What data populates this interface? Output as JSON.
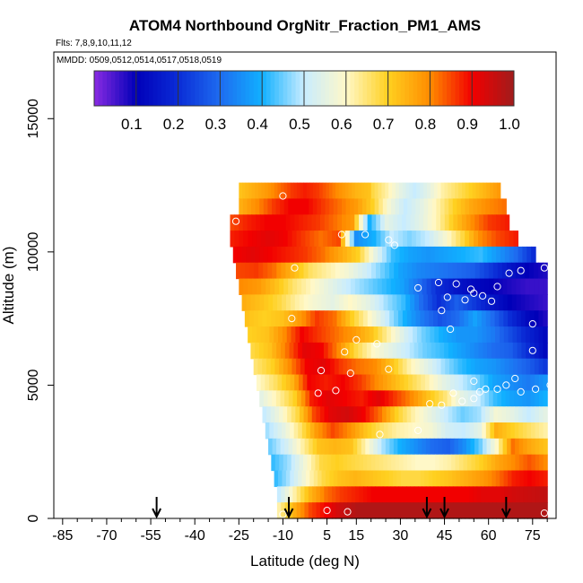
{
  "chart_data": {
    "type": "heatmap",
    "title": "ATOM4 Northbound OrgNitr_Fraction_PM1_AMS",
    "flights_text": "Flts: 7,8,9,10,11,12",
    "mmdd_text": "MMDD: 0509,0512,0514,0517,0518,0519",
    "xlabel": "Latitude (deg N)",
    "ylabel": "Altitude (m)",
    "xlim": [
      -88,
      83
    ],
    "ylim": [
      0,
      17500
    ],
    "x_ticks": [
      -85,
      -70,
      -55,
      -40,
      -25,
      -10,
      5,
      15,
      30,
      45,
      60,
      75
    ],
    "x_tick_labels": [
      "-85",
      "-70",
      "-55",
      "-40",
      "-25",
      "-10",
      "5",
      "15",
      "30",
      "45",
      "60",
      "75"
    ],
    "y_ticks": [
      0,
      5000,
      10000,
      15000
    ],
    "y_tick_labels": [
      "0",
      "5000",
      "10000",
      "15000"
    ],
    "colorbar": {
      "ticks": [
        0.1,
        0.2,
        0.3,
        0.4,
        0.5,
        0.6,
        0.7,
        0.8,
        0.9,
        1.0
      ],
      "tick_labels": [
        "0.1",
        "0.2",
        "0.3",
        "0.4",
        "0.5",
        "0.6",
        "0.7",
        "0.8",
        "0.9",
        "1.0"
      ],
      "range": [
        0.0,
        1.0
      ],
      "colors": [
        "#8a2be2",
        "#0000b8",
        "#0a2cd6",
        "#1e6cf0",
        "#11b0ff",
        "#c8ecff",
        "#fff8c8",
        "#ffd020",
        "#ff8c00",
        "#f20000",
        "#a01c1c"
      ]
    },
    "grid_rows": [
      {
        "alt": 12300,
        "lat_start": -25,
        "lat_end": 20,
        "values": [
          0.72,
          0.75,
          0.78,
          0.82,
          0.86,
          0.88,
          0.86,
          0.82,
          0.78,
          0.74,
          0.72
        ]
      },
      {
        "alt": 12300,
        "lat_start": 20,
        "lat_end": 64,
        "values": [
          0.68,
          0.62,
          0.55,
          0.5,
          0.55,
          0.62,
          0.66,
          0.7,
          0.74,
          0.78
        ]
      },
      {
        "alt": 11700,
        "lat_start": -25,
        "lat_end": 66,
        "values": [
          0.75,
          0.8,
          0.86,
          0.9,
          0.9,
          0.86,
          0.82,
          0.78,
          0.7,
          0.58,
          0.5,
          0.55,
          0.62,
          0.7,
          0.76,
          0.8,
          0.82
        ]
      },
      {
        "alt": 11100,
        "lat_start": -28,
        "lat_end": 67,
        "values": [
          0.85,
          0.88,
          0.9,
          0.9,
          0.88,
          0.86,
          0.82,
          0.78,
          0.4,
          0.55,
          0.5,
          0.55,
          0.62,
          0.72,
          0.8,
          0.86,
          0.88
        ]
      },
      {
        "alt": 10500,
        "lat_start": -28,
        "lat_end": 70,
        "values": [
          0.88,
          0.9,
          0.92,
          0.9,
          0.86,
          0.82,
          0.85,
          0.35,
          0.4,
          0.5,
          0.46,
          0.5,
          0.58,
          0.68,
          0.8,
          0.85,
          0.88
        ]
      },
      {
        "alt": 9900,
        "lat_start": -27,
        "lat_end": 76,
        "values": [
          0.9,
          0.92,
          0.9,
          0.88,
          0.86,
          0.82,
          0.76,
          0.7,
          0.55,
          0.42,
          0.38,
          0.36,
          0.38,
          0.4,
          0.42,
          0.36,
          0.3,
          0.2
        ]
      },
      {
        "alt": 9300,
        "lat_start": -26,
        "lat_end": 80,
        "values": [
          0.85,
          0.86,
          0.82,
          0.74,
          0.66,
          0.62,
          0.58,
          0.52,
          0.45,
          0.38,
          0.34,
          0.32,
          0.3,
          0.28,
          0.22,
          0.15,
          0.1,
          0.08
        ]
      },
      {
        "alt": 8700,
        "lat_start": -25,
        "lat_end": 80,
        "values": [
          0.8,
          0.78,
          0.72,
          0.65,
          0.6,
          0.55,
          0.5,
          0.46,
          0.42,
          0.38,
          0.3,
          0.2,
          0.15,
          0.12,
          0.1,
          0.08,
          0.06,
          0.06
        ]
      },
      {
        "alt": 8100,
        "lat_start": -24,
        "lat_end": 80,
        "values": [
          0.75,
          0.72,
          0.68,
          0.62,
          0.58,
          0.55,
          0.6,
          0.55,
          0.48,
          0.42,
          0.3,
          0.2,
          0.28,
          0.22,
          0.15,
          0.1,
          0.08,
          0.06
        ]
      },
      {
        "alt": 7500,
        "lat_start": -23,
        "lat_end": 80,
        "values": [
          0.72,
          0.7,
          0.72,
          0.78,
          0.86,
          0.82,
          0.7,
          0.6,
          0.5,
          0.4,
          0.32,
          0.26,
          0.3,
          0.38,
          0.3,
          0.2,
          0.12,
          0.08
        ]
      },
      {
        "alt": 6900,
        "lat_start": -22,
        "lat_end": 80,
        "values": [
          0.7,
          0.72,
          0.8,
          0.9,
          0.86,
          0.82,
          0.78,
          0.72,
          0.62,
          0.52,
          0.45,
          0.4,
          0.36,
          0.36,
          0.32,
          0.25,
          0.18,
          0.12
        ]
      },
      {
        "alt": 6300,
        "lat_start": -21,
        "lat_end": 80,
        "values": [
          0.68,
          0.72,
          0.82,
          0.92,
          0.9,
          0.8,
          0.68,
          0.6,
          0.55,
          0.5,
          0.45,
          0.42,
          0.38,
          0.34,
          0.3,
          0.28,
          0.2,
          0.12
        ]
      },
      {
        "alt": 5700,
        "lat_start": -20,
        "lat_end": 80,
        "values": [
          0.65,
          0.7,
          0.8,
          0.9,
          0.92,
          0.86,
          0.82,
          0.8,
          0.72,
          0.62,
          0.55,
          0.48,
          0.42,
          0.38,
          0.36,
          0.32,
          0.28,
          0.22
        ]
      },
      {
        "alt": 5100,
        "lat_start": -19,
        "lat_end": 80,
        "values": [
          0.6,
          0.66,
          0.74,
          0.9,
          0.88,
          0.9,
          0.86,
          0.8,
          0.74,
          0.68,
          0.62,
          0.55,
          0.5,
          0.45,
          0.38,
          0.35,
          0.32,
          0.36
        ]
      },
      {
        "alt": 4500,
        "lat_start": -18,
        "lat_end": 80,
        "values": [
          0.55,
          0.62,
          0.7,
          0.88,
          0.92,
          0.9,
          0.88,
          0.92,
          0.86,
          0.8,
          0.72,
          0.65,
          0.55,
          0.5,
          0.42,
          0.38,
          0.36,
          0.4
        ]
      },
      {
        "alt": 3900,
        "lat_start": -17,
        "lat_end": 80,
        "values": [
          0.5,
          0.58,
          0.68,
          0.85,
          0.92,
          0.94,
          0.9,
          0.82,
          0.7,
          0.62,
          0.56,
          0.5,
          0.45,
          0.48,
          0.58,
          0.55,
          0.5,
          0.55
        ]
      },
      {
        "alt": 3300,
        "lat_start": -16,
        "lat_end": 80,
        "values": [
          0.48,
          0.55,
          0.65,
          0.78,
          0.85,
          0.8,
          0.72,
          0.66,
          0.62,
          0.6,
          0.58,
          0.52,
          0.5,
          0.55,
          0.75,
          0.7,
          0.66,
          0.62
        ]
      },
      {
        "alt": 2700,
        "lat_start": -15,
        "lat_end": 80,
        "values": [
          0.45,
          0.52,
          0.62,
          0.72,
          0.74,
          0.72,
          0.6,
          0.48,
          0.4,
          0.35,
          0.3,
          0.28,
          0.35,
          0.45,
          0.6,
          0.82,
          0.76,
          0.72
        ]
      },
      {
        "alt": 2100,
        "lat_start": -14,
        "lat_end": 80,
        "values": [
          0.42,
          0.48,
          0.58,
          0.68,
          0.7,
          0.68,
          0.66,
          0.64,
          0.62,
          0.6,
          0.6,
          0.62,
          0.66,
          0.7,
          0.76,
          0.8,
          0.84,
          0.8
        ]
      },
      {
        "alt": 1500,
        "lat_start": -13,
        "lat_end": 80,
        "values": [
          0.42,
          0.5,
          0.6,
          0.68,
          0.72,
          0.74,
          0.72,
          0.7,
          0.68,
          0.68,
          0.7,
          0.72,
          0.75,
          0.78,
          0.82,
          0.88,
          0.9,
          0.88
        ]
      },
      {
        "alt": 900,
        "lat_start": -12,
        "lat_end": 80,
        "values": [
          0.5,
          0.62,
          0.74,
          0.82,
          0.86,
          0.88,
          0.9,
          0.9,
          0.9,
          0.9,
          0.9,
          0.9,
          0.9,
          0.92,
          0.92,
          0.94,
          0.95,
          0.96
        ]
      },
      {
        "alt": 300,
        "lat_start": -12,
        "lat_end": 80,
        "values": [
          0.62,
          0.75,
          0.85,
          0.9,
          0.95,
          0.98,
          0.98,
          0.98,
          0.98,
          0.98,
          0.98,
          0.98,
          0.98,
          0.98,
          0.98,
          0.98,
          0.98,
          0.98
        ]
      }
    ],
    "cell_height_m": 600,
    "obs_points": [
      {
        "x": -10,
        "y": 12100
      },
      {
        "x": -26,
        "y": 11150
      },
      {
        "x": 10,
        "y": 10650
      },
      {
        "x": 18,
        "y": 10650
      },
      {
        "x": 26,
        "y": 10450
      },
      {
        "x": 28,
        "y": 10250
      },
      {
        "x": 74,
        "y": 11000
      },
      {
        "x": 72,
        "y": 10700
      },
      {
        "x": -6,
        "y": 9400
      },
      {
        "x": 43,
        "y": 8850
      },
      {
        "x": 49,
        "y": 8800
      },
      {
        "x": 54,
        "y": 8600
      },
      {
        "x": 55,
        "y": 8450
      },
      {
        "x": 46,
        "y": 8300
      },
      {
        "x": 52,
        "y": 8200
      },
      {
        "x": 36,
        "y": 8650
      },
      {
        "x": 58,
        "y": 8350
      },
      {
        "x": 61,
        "y": 8150
      },
      {
        "x": 63,
        "y": 8700
      },
      {
        "x": 67,
        "y": 9200
      },
      {
        "x": 71,
        "y": 9300
      },
      {
        "x": 79,
        "y": 9400
      },
      {
        "x": 44,
        "y": 7800
      },
      {
        "x": 47,
        "y": 7100
      },
      {
        "x": 75,
        "y": 7300
      },
      {
        "x": -7,
        "y": 7500
      },
      {
        "x": 15,
        "y": 6700
      },
      {
        "x": 22,
        "y": 6550
      },
      {
        "x": 11,
        "y": 6250
      },
      {
        "x": 3,
        "y": 5550
      },
      {
        "x": 13,
        "y": 5450
      },
      {
        "x": 26,
        "y": 5600
      },
      {
        "x": 66,
        "y": 5000
      },
      {
        "x": 69,
        "y": 5250
      },
      {
        "x": 75,
        "y": 6300
      },
      {
        "x": 2,
        "y": 4700
      },
      {
        "x": 8,
        "y": 4800
      },
      {
        "x": 51,
        "y": 4400
      },
      {
        "x": 55,
        "y": 4500
      },
      {
        "x": 57,
        "y": 4750
      },
      {
        "x": 63,
        "y": 4850
      },
      {
        "x": 71,
        "y": 4750
      },
      {
        "x": 76,
        "y": 4850
      },
      {
        "x": 48,
        "y": 4700
      },
      {
        "x": 40,
        "y": 4300
      },
      {
        "x": 44,
        "y": 4250
      },
      {
        "x": 55,
        "y": 5150
      },
      {
        "x": 59,
        "y": 4850
      },
      {
        "x": 81,
        "y": 5000
      },
      {
        "x": 36,
        "y": 3300
      },
      {
        "x": 23,
        "y": 3150
      },
      {
        "x": 5,
        "y": 300
      },
      {
        "x": 12,
        "y": 250
      },
      {
        "x": 79,
        "y": 200
      },
      {
        "x": -10,
        "y": 150
      }
    ],
    "arrows_lat": [
      -53,
      -8,
      39,
      45,
      66
    ]
  }
}
